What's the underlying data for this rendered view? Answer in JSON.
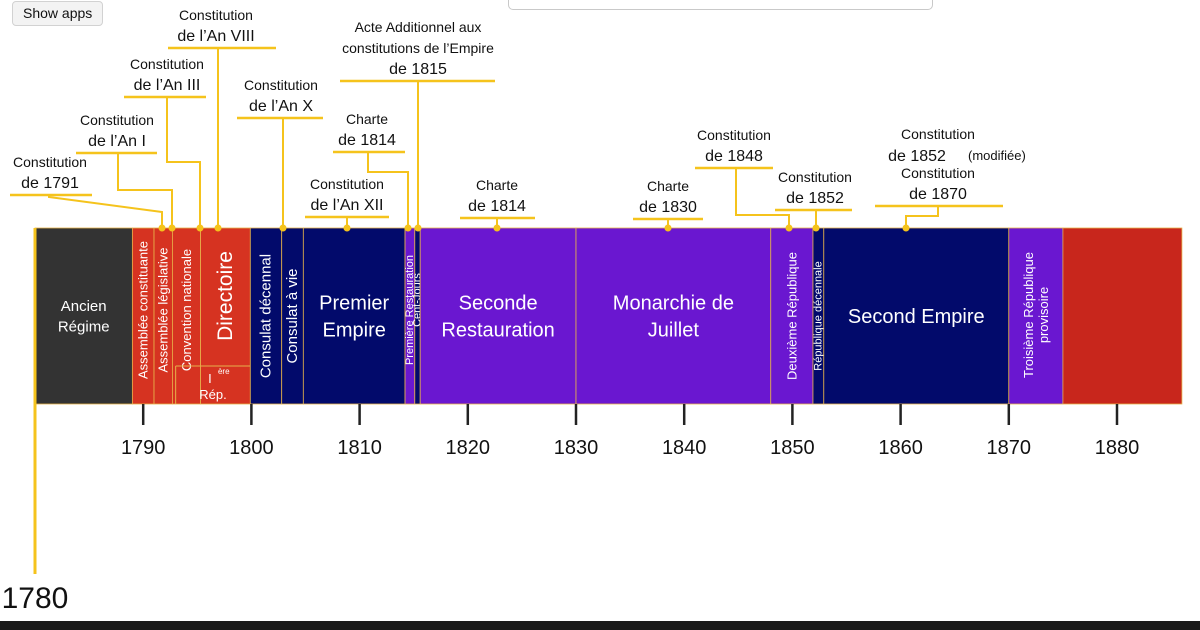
{
  "top_button": {
    "label": "Show apps"
  },
  "colors": {
    "gold": "#f5c31c",
    "ancien": "#333333",
    "revolution_red": "#d63321",
    "empire_navy": "#020a6b",
    "monarchy_purple": "#6a17d0",
    "third_republic_red": "#c8261c",
    "axis": "#222222"
  },
  "axis": {
    "start_year_label": "1780",
    "tick_years": [
      1790,
      1800,
      1810,
      1820,
      1830,
      1840,
      1850,
      1860,
      1870,
      1880
    ],
    "tick_labels": [
      "1790",
      "1800",
      "1810",
      "1820",
      "1830",
      "1840",
      "1850",
      "1860",
      "1870",
      "1880"
    ]
  },
  "periods": [
    {
      "id": "ancien-regime",
      "label": "Ancien\nRégime",
      "start": 1780,
      "end": 1789,
      "color": "ancien",
      "orientation": "horizontal"
    },
    {
      "id": "assemblee-constituante",
      "label": "Assemblée constituante",
      "start": 1789,
      "end": 1791,
      "color": "revolution_red",
      "orientation": "vertical"
    },
    {
      "id": "assemblee-legislative",
      "label": "Assemblée législative",
      "start": 1791,
      "end": 1792.7,
      "color": "revolution_red",
      "orientation": "vertical"
    },
    {
      "id": "convention-nationale",
      "label": "Convention nationale",
      "start": 1792.7,
      "end": 1795.3,
      "color": "revolution_red",
      "orientation": "vertical"
    },
    {
      "id": "directoire",
      "label": "Directoire",
      "start": 1795.3,
      "end": 1799.9,
      "color": "revolution_red",
      "orientation": "vertical"
    },
    {
      "id": "consulat-decennal",
      "label": "Consulat décennal",
      "start": 1799.9,
      "end": 1802.8,
      "color": "empire_navy",
      "orientation": "vertical"
    },
    {
      "id": "consulat-a-vie",
      "label": "Consulat à vie",
      "start": 1802.8,
      "end": 1804.8,
      "color": "empire_navy",
      "orientation": "vertical"
    },
    {
      "id": "premier-empire",
      "label": "Premier\nEmpire",
      "start": 1804.8,
      "end": 1814.2,
      "color": "empire_navy",
      "orientation": "horizontal"
    },
    {
      "id": "premiere-restauration",
      "label": "Première Restauration",
      "start": 1814.2,
      "end": 1815.1,
      "color": "monarchy_purple",
      "orientation": "vertical"
    },
    {
      "id": "cent-jours",
      "label": "Cent-Jours",
      "start": 1815.1,
      "end": 1815.6,
      "color": "empire_navy",
      "orientation": "vertical"
    },
    {
      "id": "seconde-restauration",
      "label": "Seconde\nRestauration",
      "start": 1815.6,
      "end": 1830,
      "color": "monarchy_purple",
      "orientation": "horizontal"
    },
    {
      "id": "monarchie-de-juillet",
      "label": "Monarchie de\nJuillet",
      "start": 1830,
      "end": 1848,
      "color": "monarchy_purple",
      "orientation": "horizontal"
    },
    {
      "id": "deuxieme-republique",
      "label": "Deuxième République",
      "start": 1848,
      "end": 1851.9,
      "color": "monarchy_purple",
      "orientation": "vertical"
    },
    {
      "id": "republique-decennale",
      "label": "République décennale",
      "start": 1851.9,
      "end": 1852.9,
      "color": "empire_navy",
      "orientation": "vertical"
    },
    {
      "id": "second-empire",
      "label": "Second Empire",
      "start": 1852.9,
      "end": 1870,
      "color": "empire_navy",
      "orientation": "horizontal"
    },
    {
      "id": "troisieme-republique-provisoire",
      "label": "Troisième République\nprovisoire",
      "start": 1870,
      "end": 1875,
      "color": "monarchy_purple",
      "orientation": "vertical"
    },
    {
      "id": "troisieme-republique",
      "label": "",
      "start": 1875,
      "end": 1886,
      "color": "third_republic_red",
      "orientation": "none"
    }
  ],
  "premiere_republique_label": {
    "sup": "ère",
    "text": "I",
    "bottom": "Rép.",
    "start": 1793,
    "end": 1799.9
  },
  "constitutions": [
    {
      "id": "constitution-1791",
      "lines": [
        "Constitution",
        "de 1791"
      ],
      "year": 1791.7
    },
    {
      "id": "constitution-an-i",
      "lines": [
        "Constitution",
        "de l’An I"
      ],
      "year": 1793
    },
    {
      "id": "constitution-an-iii",
      "lines": [
        "Constitution",
        "de l’An III"
      ],
      "year": 1795.3
    },
    {
      "id": "constitution-an-viii",
      "lines": [
        "Constitution",
        "de l’An VIII"
      ],
      "year": 1799.9
    },
    {
      "id": "constitution-an-x",
      "lines": [
        "Constitution",
        "de l’An X"
      ],
      "year": 1802.8
    },
    {
      "id": "acte-additionnel-1815",
      "lines": [
        "Acte Additionnel aux",
        "constitutions de l’Empire",
        "de 1815"
      ],
      "year": 1815.5
    },
    {
      "id": "charte-1814-top",
      "lines": [
        "Charte",
        "de 1814"
      ],
      "year": 1814.5
    },
    {
      "id": "constitution-an-xii",
      "lines": [
        "Constitution",
        "de l’An XII"
      ],
      "year": 1809.3
    },
    {
      "id": "charte-1814",
      "lines": [
        "Charte",
        "de 1814"
      ],
      "year": 1823.1
    },
    {
      "id": "charte-1830",
      "lines": [
        "Charte",
        "de 1830"
      ],
      "year": 1839.1
    },
    {
      "id": "constitution-1848",
      "lines": [
        "Constitution",
        "de 1848"
      ],
      "year": 1850
    },
    {
      "id": "constitution-1852",
      "lines": [
        "Constitution",
        "de 1852"
      ],
      "year": 1852.2
    },
    {
      "id": "constitution-1852-modifiee",
      "lines": [
        "Constitution",
        "de 1852",
        "(modifiée)"
      ],
      "year": 1861
    },
    {
      "id": "constitution-1870",
      "lines": [
        "Constitution",
        "de 1870"
      ],
      "year": 1861
    }
  ]
}
